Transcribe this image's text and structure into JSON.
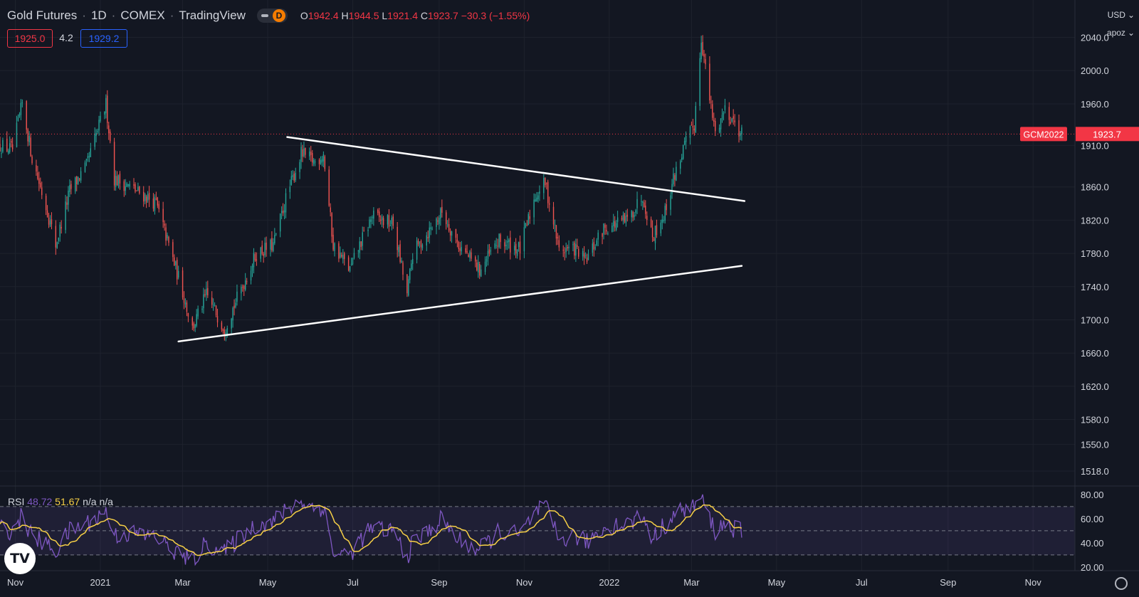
{
  "header": {
    "symbol": "Gold Futures",
    "interval": "1D",
    "exchange": "COMEX",
    "source": "TradingView",
    "mode_badge": "D",
    "ohlc": {
      "o_label": "O",
      "o": "1942.4",
      "h_label": "H",
      "h": "1944.5",
      "l_label": "L",
      "l": "1921.4",
      "c_label": "C",
      "c": "1923.7",
      "change": "−30.3 (−1.55%)"
    }
  },
  "quote": {
    "bid": "1925.0",
    "spread": "4.2",
    "ask": "1929.2"
  },
  "axis_controls": {
    "currency": "USD",
    "scale": "apoz"
  },
  "indicator": {
    "name": "RSI",
    "rsi_value": "48.72",
    "ma_value": "51.67",
    "extra": "n/a n/a"
  },
  "colors": {
    "background": "#131722",
    "up": "#26a69a",
    "down": "#ef5350",
    "rsi": "#7e57c2",
    "rsi_ma": "#f7d046",
    "last_price": "#f23645",
    "trendline": "#ffffff",
    "grid": "#1e222d"
  },
  "icons": {
    "logo": "tradingview-logo-icon",
    "settings": "gear-icon",
    "dropdown": "chevron-down-icon"
  },
  "logo_text": "TV",
  "chart_data": [
    {
      "type": "candlestick",
      "ylim": [
        1500,
        2085
      ],
      "y_ticks": [
        "2040.0",
        "2000.0",
        "1960.0",
        "1910.0",
        "1860.0",
        "1820.0",
        "1780.0",
        "1740.0",
        "1700.0",
        "1660.0",
        "1620.0",
        "1580.0",
        "1550.0",
        "1518.0"
      ],
      "y_tick_values": [
        2040,
        2000,
        1960,
        1910,
        1860,
        1820,
        1780,
        1740,
        1700,
        1660,
        1620,
        1580,
        1550,
        1518
      ],
      "x_labels": [
        "Nov",
        "2021",
        "Mar",
        "May",
        "Jul",
        "Sep",
        "Nov",
        "2022",
        "Mar",
        "May",
        "Jul",
        "Sep",
        "Nov"
      ],
      "x_label_dates": [
        "2020-11-01",
        "2021-01-01",
        "2021-03-01",
        "2021-05-01",
        "2021-07-01",
        "2021-09-01",
        "2021-11-01",
        "2022-01-01",
        "2022-03-01",
        "2022-05-01",
        "2022-07-01",
        "2022-09-01",
        "2022-11-01"
      ],
      "x_range": [
        "2020-10-21",
        "2022-12-01"
      ],
      "last_price": {
        "label": "GCM2022",
        "value": 1923.7,
        "text": "1923.7"
      },
      "price_path": [
        [
          "2020-10-21",
          1910
        ],
        [
          "2020-10-30",
          1905
        ],
        [
          "2020-11-06",
          1960
        ],
        [
          "2020-11-13",
          1895
        ],
        [
          "2020-11-24",
          1830
        ],
        [
          "2020-11-30",
          1790
        ],
        [
          "2020-12-10",
          1855
        ],
        [
          "2020-12-22",
          1885
        ],
        [
          "2021-01-05",
          1960
        ],
        [
          "2021-01-11",
          1870
        ],
        [
          "2021-01-22",
          1860
        ],
        [
          "2021-02-01",
          1850
        ],
        [
          "2021-02-10",
          1840
        ],
        [
          "2021-02-19",
          1790
        ],
        [
          "2021-02-28",
          1740
        ],
        [
          "2021-03-08",
          1690
        ],
        [
          "2021-03-18",
          1730
        ],
        [
          "2021-03-31",
          1690
        ],
        [
          "2021-04-14",
          1745
        ],
        [
          "2021-04-23",
          1780
        ],
        [
          "2021-05-05",
          1790
        ],
        [
          "2021-05-14",
          1845
        ],
        [
          "2021-05-25",
          1900
        ],
        [
          "2021-06-04",
          1890
        ],
        [
          "2021-06-10",
          1900
        ],
        [
          "2021-06-17",
          1790
        ],
        [
          "2021-06-29",
          1760
        ],
        [
          "2021-07-06",
          1790
        ],
        [
          "2021-07-15",
          1825
        ],
        [
          "2021-07-30",
          1815
        ],
        [
          "2021-08-09",
          1730
        ],
        [
          "2021-08-13",
          1780
        ],
        [
          "2021-08-24",
          1805
        ],
        [
          "2021-09-03",
          1830
        ],
        [
          "2021-09-15",
          1790
        ],
        [
          "2021-09-30",
          1760
        ],
        [
          "2021-10-14",
          1795
        ],
        [
          "2021-10-29",
          1785
        ],
        [
          "2021-11-09",
          1850
        ],
        [
          "2021-11-16",
          1865
        ],
        [
          "2021-11-26",
          1785
        ],
        [
          "2021-12-08",
          1785
        ],
        [
          "2021-12-15",
          1770
        ],
        [
          "2021-12-28",
          1810
        ],
        [
          "2022-01-05",
          1815
        ],
        [
          "2022-01-14",
          1820
        ],
        [
          "2022-01-25",
          1850
        ],
        [
          "2022-02-01",
          1800
        ],
        [
          "2022-02-10",
          1830
        ],
        [
          "2022-02-16",
          1870
        ],
        [
          "2022-02-24",
          1910
        ],
        [
          "2022-03-03",
          1935
        ],
        [
          "2022-03-08",
          2040
        ],
        [
          "2022-03-14",
          1965
        ],
        [
          "2022-03-18",
          1925
        ],
        [
          "2022-03-25",
          1955
        ],
        [
          "2022-03-31",
          1940
        ],
        [
          "2022-04-06",
          1923.7
        ]
      ],
      "trendlines": [
        {
          "name": "upper",
          "from": [
            "2021-05-15",
            1920
          ],
          "to": [
            "2022-04-08",
            1843
          ]
        },
        {
          "name": "lower",
          "from": [
            "2021-02-26",
            1674
          ],
          "to": [
            "2022-04-06",
            1765
          ]
        }
      ]
    },
    {
      "type": "line",
      "name": "RSI",
      "ylim": [
        17,
        87
      ],
      "y_ticks": [
        "80.00",
        "60.00",
        "40.00",
        "20.00"
      ],
      "y_tick_values": [
        80,
        60,
        40,
        20
      ],
      "bands": [
        70,
        50,
        30
      ],
      "rsi_path": [
        [
          "2020-10-21",
          52
        ],
        [
          "2020-10-30",
          50
        ],
        [
          "2020-11-06",
          63
        ],
        [
          "2020-11-13",
          45
        ],
        [
          "2020-11-24",
          38
        ],
        [
          "2020-11-30",
          33
        ],
        [
          "2020-12-10",
          50
        ],
        [
          "2020-12-22",
          56
        ],
        [
          "2021-01-05",
          66
        ],
        [
          "2021-01-11",
          46
        ],
        [
          "2021-01-22",
          48
        ],
        [
          "2021-02-01",
          46
        ],
        [
          "2021-02-10",
          45
        ],
        [
          "2021-02-19",
          36
        ],
        [
          "2021-02-28",
          30
        ],
        [
          "2021-03-08",
          25
        ],
        [
          "2021-03-18",
          40
        ],
        [
          "2021-03-31",
          32
        ],
        [
          "2021-04-14",
          48
        ],
        [
          "2021-04-23",
          55
        ],
        [
          "2021-05-05",
          57
        ],
        [
          "2021-05-14",
          67
        ],
        [
          "2021-05-25",
          75
        ],
        [
          "2021-06-04",
          68
        ],
        [
          "2021-06-10",
          70
        ],
        [
          "2021-06-17",
          32
        ],
        [
          "2021-06-29",
          30
        ],
        [
          "2021-07-06",
          42
        ],
        [
          "2021-07-15",
          52
        ],
        [
          "2021-07-30",
          50
        ],
        [
          "2021-08-09",
          28
        ],
        [
          "2021-08-13",
          40
        ],
        [
          "2021-08-24",
          49
        ],
        [
          "2021-09-03",
          60
        ],
        [
          "2021-09-15",
          42
        ],
        [
          "2021-09-30",
          34
        ],
        [
          "2021-10-14",
          50
        ],
        [
          "2021-10-29",
          46
        ],
        [
          "2021-11-09",
          65
        ],
        [
          "2021-11-16",
          70
        ],
        [
          "2021-11-26",
          42
        ],
        [
          "2021-12-08",
          46
        ],
        [
          "2021-12-15",
          40
        ],
        [
          "2021-12-28",
          52
        ],
        [
          "2022-01-05",
          55
        ],
        [
          "2022-01-14",
          56
        ],
        [
          "2022-01-25",
          62
        ],
        [
          "2022-02-01",
          44
        ],
        [
          "2022-02-10",
          55
        ],
        [
          "2022-02-16",
          62
        ],
        [
          "2022-02-24",
          68
        ],
        [
          "2022-03-03",
          70
        ],
        [
          "2022-03-08",
          78
        ],
        [
          "2022-03-14",
          60
        ],
        [
          "2022-03-18",
          50
        ],
        [
          "2022-03-25",
          56
        ],
        [
          "2022-03-31",
          52
        ],
        [
          "2022-04-06",
          48.72
        ]
      ]
    }
  ]
}
